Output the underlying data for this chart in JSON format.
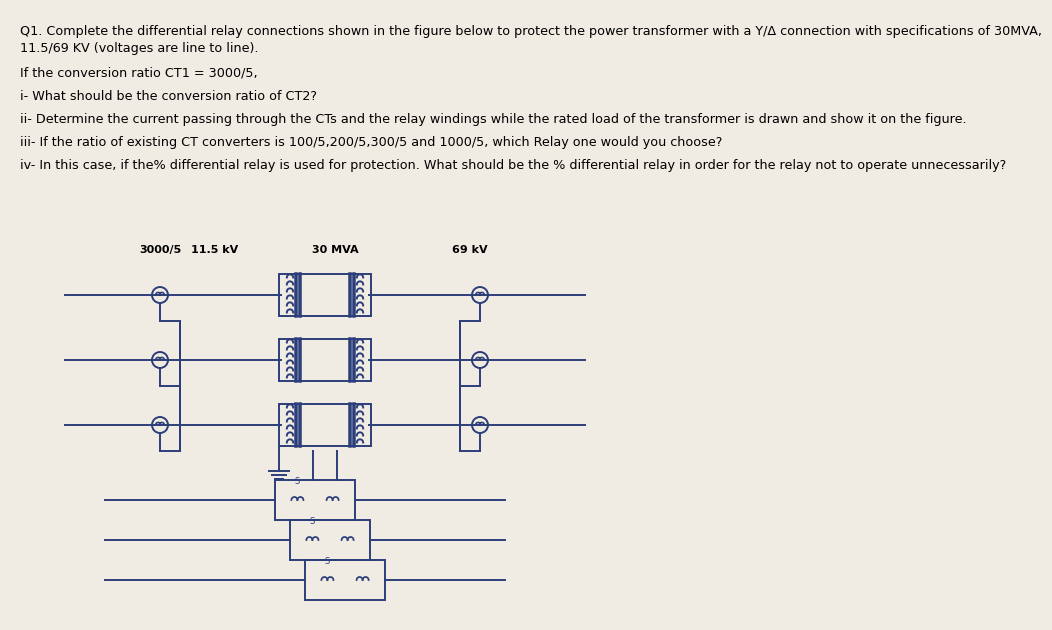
{
  "title_line1": "Q1. Complete the differential relay connections shown in the figure below to protect the power transformer with a Y/Δ connection with specifications of 30MVA,",
  "title_line2": "11.5/69 KV (voltages are line to line).",
  "line1": "If the conversion ratio CT1 = 3000/5,",
  "line2": "i- What should be the conversion ratio of CT2?",
  "line3": "ii- Determine the current passing through the CTs and the relay windings while the rated load of the transformer is drawn and show it on the figure.",
  "line4": "iii- If the ratio of existing CT converters is 100/5,200/5,300/5 and 1000/5, which Relay one would you choose?",
  "line5": "iv- In this case, if the% differential relay is used for protection. What should be the % differential relay in order for the relay not to operate unnecessarily?",
  "label_ct1": "3000/5",
  "label_v1": "11.5 kV",
  "label_mva": "30 MVA",
  "label_v2": "69 kV",
  "bg_color": "#f0ece3",
  "diagram_bg": "#e8e4d8",
  "line_color": "#2c3e7a",
  "text_color": "#000000",
  "font_size_main": 9.2,
  "font_size_label": 7.5
}
